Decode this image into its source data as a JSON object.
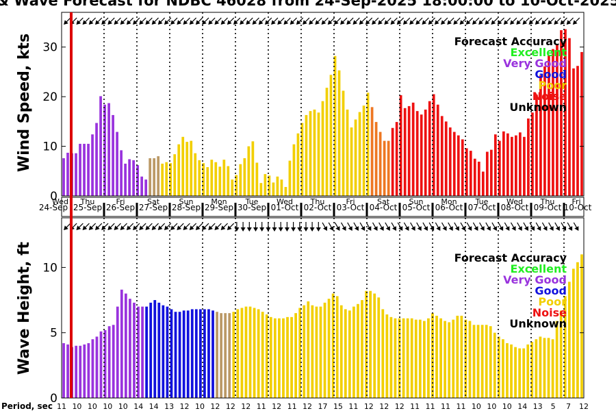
{
  "title": "& Wave Forecast for NDBC 46028 from 24-Sep-2025 18:00:00 to 10-Oct-2025",
  "colors": {
    "Excellent": "#22ee22",
    "Very Good": "#9933dd",
    "Good": "#1111dd",
    "Poor": "#f2cf00",
    "Noise": "#ee1111",
    "Unknown": "#000000",
    "Transition": "#bb9966",
    "Orange": "#ee7722",
    "NowLine": "#dd0000"
  },
  "legend": {
    "title": "Forecast Accuracy",
    "items": [
      {
        "label": "Excellent",
        "key": "Excellent"
      },
      {
        "label": "Very Good",
        "key": "Very Good"
      },
      {
        "label": "Good",
        "key": "Good"
      },
      {
        "label": "Poor",
        "key": "Poor"
      },
      {
        "label": "Noise",
        "key": "Noise"
      },
      {
        "label": "Unknown",
        "key": "Unknown"
      }
    ]
  },
  "period_label": "Period, sec",
  "chart_data": [
    {
      "type": "bar",
      "name": "wind",
      "ylabel": "Wind Speed, kts",
      "ylim": [
        0,
        37
      ],
      "yticks": [
        0,
        10,
        20,
        30
      ],
      "xlim": [
        0,
        16
      ],
      "day_labels": [
        "Wed",
        "Thu",
        "Fri",
        "Sat",
        "Sun",
        "Mon",
        "Tue",
        "Wed",
        "Thu",
        "Fri",
        "Sat",
        "Sun",
        "Mon",
        "Tue",
        "Wed",
        "Thu",
        "Fri"
      ],
      "date_labels": [
        "24-Sep",
        "25-Sep",
        "26-Sep",
        "27-Sep",
        "28-Sep",
        "29-Sep",
        "30-Sep",
        "01-Oct",
        "02-Oct",
        "03-Oct",
        "04-Oct",
        "05-Oct",
        "06-Oct",
        "07-Oct",
        "08-Oct",
        "09-Oct",
        "10-Oct"
      ],
      "values": [
        7.6,
        8.7,
        8.6,
        8.6,
        10.5,
        10.5,
        10.5,
        12.4,
        14.7,
        20.1,
        18.4,
        18.7,
        16.3,
        12.9,
        9.2,
        6.5,
        7.4,
        7.2,
        6.2,
        3.9,
        3.3,
        7.6,
        7.6,
        8.0,
        6.5,
        6.8,
        6.6,
        8.4,
        10.4,
        11.9,
        10.9,
        11.1,
        8.6,
        7.2,
        6.6,
        5.8,
        7.3,
        6.8,
        5.9,
        7.3,
        6.0,
        3.3,
        4.2,
        6.4,
        7.6,
        10.0,
        11.0,
        6.7,
        2.6,
        4.4,
        4.1,
        2.7,
        3.9,
        3.3,
        1.8,
        7.1,
        10.4,
        12.6,
        14.7,
        16.3,
        17.1,
        17.4,
        16.8,
        19.1,
        21.8,
        24.4,
        28.2,
        25.3,
        21.2,
        17.4,
        13.8,
        15.4,
        16.9,
        18.2,
        20.8,
        17.9,
        14.9,
        12.9,
        11.1,
        11.1,
        13.7,
        14.9,
        20.3,
        17.7,
        18.1,
        18.8,
        17.1,
        16.4,
        17.4,
        19.1,
        20.5,
        18.4,
        16.1,
        15.0,
        13.8,
        12.9,
        12.2,
        11.4,
        9.6,
        9.1,
        7.5,
        6.9,
        4.9,
        8.9,
        9.3,
        12.4,
        11.1,
        13.0,
        12.6,
        11.9,
        12.2,
        12.8,
        11.9,
        15.6,
        16.8,
        20.4,
        24.3,
        26.1,
        28.4,
        29.6,
        30.4,
        33.4,
        33.6,
        31.8,
        25.7,
        26.2,
        29.0
      ],
      "categories": [
        "Very Good",
        "Very Good",
        "Very Good",
        "Very Good",
        "Very Good",
        "Very Good",
        "Very Good",
        "Very Good",
        "Very Good",
        "Very Good",
        "Very Good",
        "Very Good",
        "Very Good",
        "Very Good",
        "Very Good",
        "Very Good",
        "Very Good",
        "Very Good",
        "Very Good",
        "Very Good",
        "Very Good",
        "Transition",
        "Transition",
        "Transition",
        "Poor",
        "Poor",
        "Poor",
        "Poor",
        "Poor",
        "Poor",
        "Poor",
        "Poor",
        "Poor",
        "Poor",
        "Poor",
        "Poor",
        "Poor",
        "Poor",
        "Poor",
        "Poor",
        "Poor",
        "Poor",
        "Poor",
        "Poor",
        "Poor",
        "Poor",
        "Poor",
        "Poor",
        "Poor",
        "Poor",
        "Poor",
        "Poor",
        "Poor",
        "Poor",
        "Poor",
        "Poor",
        "Poor",
        "Poor",
        "Poor",
        "Poor",
        "Poor",
        "Poor",
        "Poor",
        "Poor",
        "Poor",
        "Poor",
        "Poor",
        "Poor",
        "Poor",
        "Poor",
        "Poor",
        "Poor",
        "Poor",
        "Poor",
        "Poor",
        "Orange",
        "Orange",
        "Orange",
        "Orange",
        "Orange",
        "Noise",
        "Noise",
        "Noise",
        "Noise",
        "Noise",
        "Noise",
        "Noise",
        "Noise",
        "Noise",
        "Noise",
        "Noise",
        "Noise",
        "Noise",
        "Noise",
        "Noise",
        "Noise",
        "Noise",
        "Noise",
        "Noise",
        "Noise",
        "Noise",
        "Noise",
        "Noise",
        "Noise",
        "Noise",
        "Noise",
        "Noise",
        "Noise",
        "Noise",
        "Noise",
        "Noise",
        "Noise",
        "Noise",
        "Noise",
        "Noise",
        "Noise",
        "Noise",
        "Noise",
        "Noise",
        "Noise",
        "Noise",
        "Noise",
        "Noise",
        "Noise",
        "Noise",
        "Noise",
        "Noise"
      ],
      "direction_arrows_deg": [
        135,
        135,
        135,
        135,
        135,
        135,
        135,
        135,
        135,
        135,
        135,
        135,
        135,
        135,
        135,
        135,
        135,
        135,
        135,
        135,
        135,
        135,
        135,
        135,
        135,
        135,
        135,
        135,
        135,
        135,
        135,
        135,
        135,
        135,
        135,
        135,
        135,
        135,
        135,
        135,
        135,
        135,
        135,
        135,
        135,
        135,
        135,
        135,
        135,
        135,
        135,
        135,
        135,
        135,
        135,
        135,
        135,
        135,
        135,
        135,
        135,
        135,
        135,
        135,
        135,
        135,
        135,
        135,
        135,
        135,
        135,
        135,
        135,
        135,
        135,
        135,
        135,
        135,
        135,
        135,
        135,
        135
      ]
    },
    {
      "type": "bar",
      "name": "wave",
      "ylabel": "Wave Height, ft",
      "ylim": [
        0,
        13.8
      ],
      "yticks": [
        0,
        5,
        10
      ],
      "xlim": [
        0,
        16
      ],
      "values": [
        4.2,
        4.1,
        3.9,
        4.0,
        4.0,
        4.1,
        4.2,
        4.5,
        4.7,
        5.1,
        5.2,
        5.5,
        5.6,
        7.0,
        8.3,
        8.0,
        7.6,
        7.3,
        7.0,
        7.0,
        7.0,
        7.3,
        7.5,
        7.3,
        7.1,
        7.0,
        6.8,
        6.6,
        6.6,
        6.7,
        6.7,
        6.8,
        6.8,
        6.8,
        6.8,
        6.8,
        6.7,
        6.6,
        6.5,
        6.5,
        6.5,
        6.6,
        6.8,
        6.9,
        7.0,
        7.0,
        6.9,
        6.8,
        6.6,
        6.4,
        6.2,
        6.1,
        6.1,
        6.1,
        6.2,
        6.2,
        6.5,
        6.9,
        7.1,
        7.4,
        7.1,
        7.0,
        7.0,
        7.3,
        7.6,
        8.0,
        7.8,
        7.1,
        6.8,
        6.7,
        7.0,
        7.2,
        7.5,
        8.2,
        8.2,
        8.0,
        7.7,
        6.8,
        6.4,
        6.2,
        6.1,
        6.1,
        6.1,
        6.1,
        6.1,
        6.0,
        6.0,
        5.9,
        6.1,
        6.5,
        6.3,
        6.1,
        5.9,
        5.8,
        6.0,
        6.3,
        6.3,
        6.0,
        5.9,
        5.6,
        5.6,
        5.6,
        5.6,
        5.5,
        5.0,
        4.7,
        4.5,
        4.2,
        4.1,
        3.9,
        3.8,
        3.8,
        4.1,
        4.3,
        4.5,
        4.7,
        4.6,
        4.6,
        4.5,
        5.9,
        6.7,
        7.8,
        8.9,
        9.9,
        10.4,
        11.0
      ],
      "categories": [
        "Very Good",
        "Very Good",
        "Very Good",
        "Very Good",
        "Very Good",
        "Very Good",
        "Very Good",
        "Very Good",
        "Very Good",
        "Very Good",
        "Very Good",
        "Very Good",
        "Very Good",
        "Very Good",
        "Very Good",
        "Very Good",
        "Very Good",
        "Very Good",
        "Very Good",
        "Very Good",
        "Good",
        "Good",
        "Good",
        "Good",
        "Good",
        "Good",
        "Good",
        "Good",
        "Good",
        "Good",
        "Good",
        "Good",
        "Good",
        "Good",
        "Good",
        "Good",
        "Good",
        "Transition",
        "Transition",
        "Transition",
        "Transition",
        "Poor",
        "Poor",
        "Poor",
        "Poor",
        "Poor",
        "Poor",
        "Poor",
        "Poor",
        "Poor",
        "Poor",
        "Poor",
        "Poor",
        "Poor",
        "Poor",
        "Poor",
        "Poor",
        "Poor",
        "Poor",
        "Poor",
        "Poor",
        "Poor",
        "Poor",
        "Poor",
        "Poor",
        "Poor",
        "Poor",
        "Poor",
        "Poor",
        "Poor",
        "Poor",
        "Poor",
        "Poor",
        "Poor",
        "Poor",
        "Poor",
        "Poor",
        "Poor",
        "Poor",
        "Poor",
        "Poor",
        "Poor",
        "Poor",
        "Poor",
        "Poor",
        "Poor",
        "Poor",
        "Poor",
        "Poor",
        "Poor",
        "Poor",
        "Poor",
        "Poor",
        "Poor",
        "Poor",
        "Poor",
        "Poor",
        "Poor",
        "Poor",
        "Poor",
        "Poor",
        "Poor",
        "Poor",
        "Poor",
        "Poor",
        "Poor",
        "Poor",
        "Poor",
        "Poor",
        "Poor",
        "Poor",
        "Poor",
        "Poor",
        "Poor",
        "Poor",
        "Poor",
        "Poor",
        "Poor",
        "Poor",
        "Poor",
        "Poor",
        "Poor",
        "Poor",
        "Poor",
        "Poor",
        "Poor"
      ],
      "direction_arrows_deg": [
        135,
        135,
        135,
        135,
        135,
        135,
        135,
        135,
        135,
        135,
        135,
        135,
        135,
        135,
        135,
        135,
        135,
        135,
        135,
        135,
        135,
        135,
        135,
        135,
        135,
        135,
        135,
        90,
        90,
        90,
        90,
        90,
        90,
        90,
        90,
        90,
        90,
        90,
        90,
        90,
        90,
        60,
        60,
        60,
        60,
        60,
        60,
        60,
        60,
        60,
        60,
        60,
        60,
        60,
        60,
        60,
        60,
        60,
        60,
        60,
        60,
        60,
        60,
        60,
        60,
        60,
        60,
        60,
        60,
        60,
        60,
        60,
        60,
        60,
        60,
        60,
        60,
        60,
        60,
        60,
        60,
        60
      ],
      "periods": [
        "11",
        "10",
        "10",
        "10",
        "10",
        "14",
        "14",
        "13",
        "12",
        "10",
        "12",
        "12",
        "12",
        "11",
        "12",
        "11",
        "12",
        "17",
        "15",
        "11",
        "12",
        "12",
        "12",
        "11",
        "11",
        "11",
        "11",
        "10",
        "10",
        "10",
        "14",
        "13",
        "5",
        "7",
        "12"
      ]
    }
  ]
}
